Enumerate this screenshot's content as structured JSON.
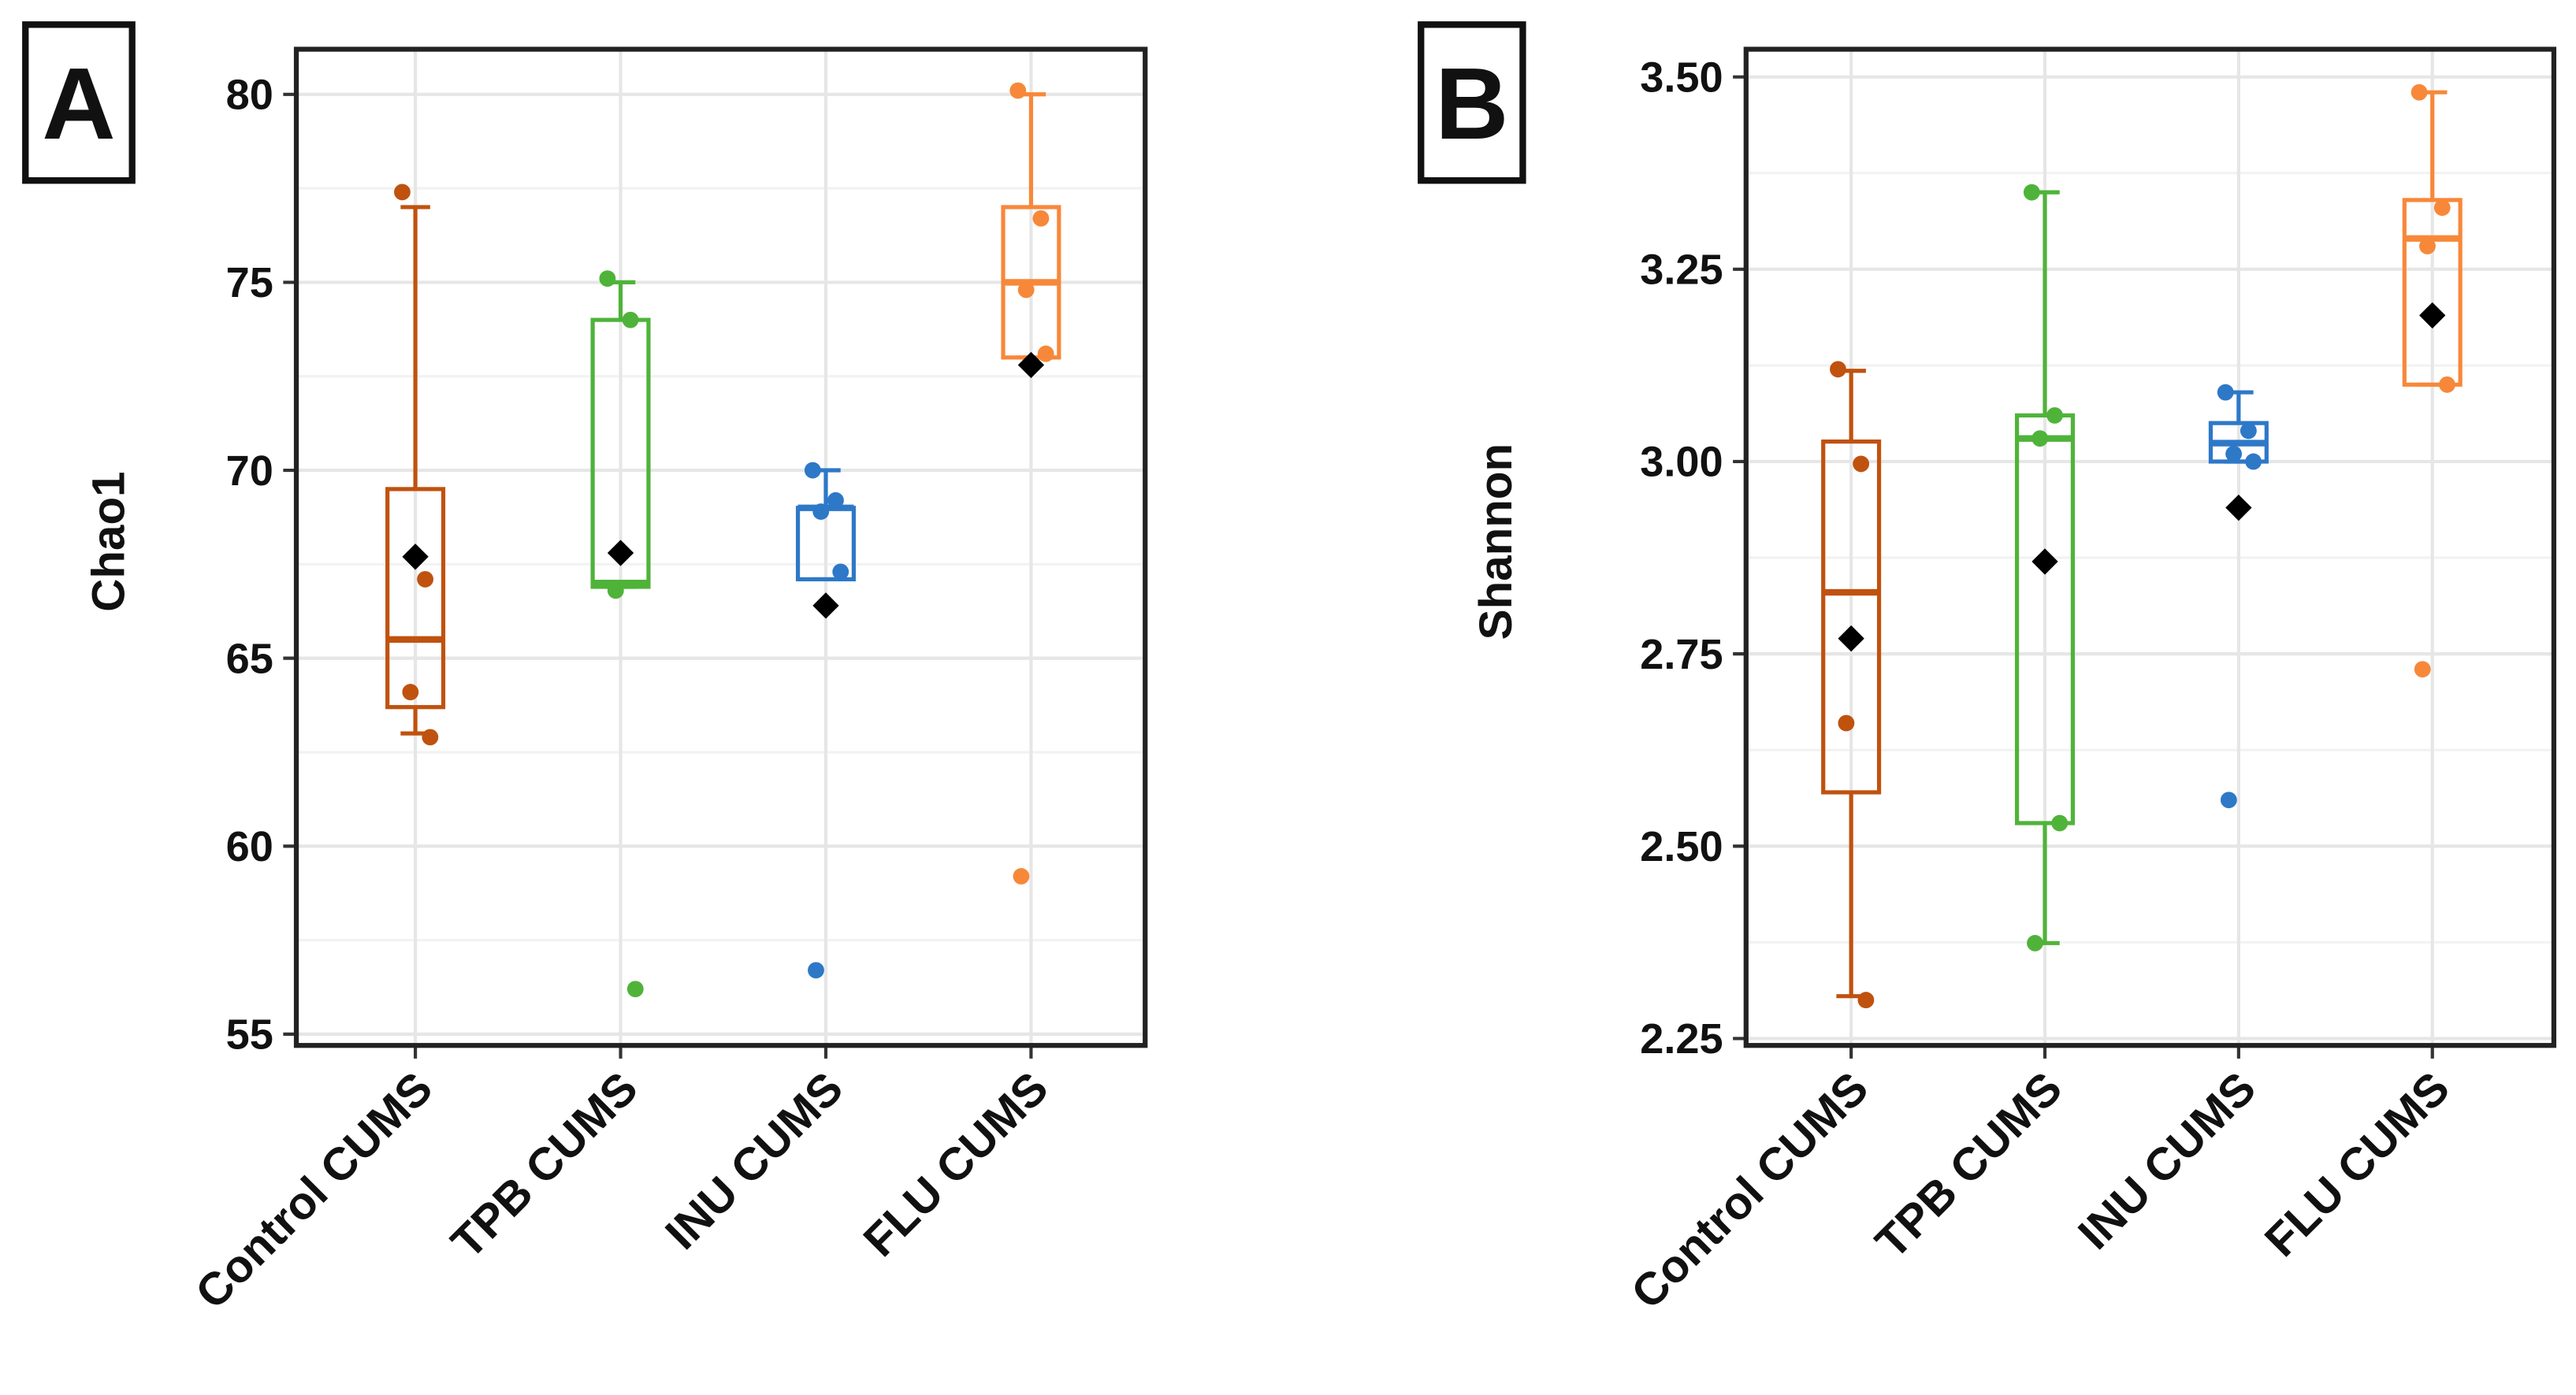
{
  "chart_data": [
    {
      "type": "box",
      "panel_label": "A",
      "y_label": "Chao1",
      "categories": [
        "Control CUMS",
        "TPB CUMS",
        "INU CUMS",
        "FLU CUMS"
      ],
      "boxes": [
        {
          "color": "#c0520f",
          "whisker_low": 63.0,
          "q1": 63.7,
          "median": 65.5,
          "q3": 69.5,
          "whisker_high": 77.0,
          "mean": 67.7,
          "points": [
            77.4,
            67.1,
            64.1,
            62.9
          ]
        },
        {
          "color": "#4fb33a",
          "whisker_low": 66.9,
          "q1": 66.9,
          "median": 67.0,
          "q3": 74.0,
          "whisker_high": 75.0,
          "mean": 67.8,
          "points": [
            75.1,
            74.0,
            66.8,
            56.2
          ]
        },
        {
          "color": "#2e78c8",
          "whisker_low": 67.1,
          "q1": 67.1,
          "median": 69.0,
          "q3": 69.0,
          "whisker_high": 70.0,
          "mean": 66.4,
          "points": [
            70.0,
            69.2,
            68.9,
            67.3,
            56.7
          ]
        },
        {
          "color": "#f7883a",
          "whisker_low": 73.0,
          "q1": 73.0,
          "median": 75.0,
          "q3": 77.0,
          "whisker_high": 80.0,
          "mean": 72.8,
          "points": [
            80.1,
            76.7,
            74.8,
            73.1,
            59.2
          ]
        }
      ],
      "mean_color": "#000000",
      "ylim": [
        54.7,
        81.2
      ],
      "yticks": [
        55,
        60,
        65,
        70,
        75,
        80
      ],
      "grid": true
    },
    {
      "type": "box",
      "panel_label": "B",
      "y_label": "Shannon",
      "categories": [
        "Control CUMS",
        "TPB CUMS",
        "INU CUMS",
        "FLU CUMS"
      ],
      "boxes": [
        {
          "color": "#c0520f",
          "whisker_low": 2.305,
          "q1": 2.57,
          "median": 2.83,
          "q3": 3.026,
          "whisker_high": 3.118,
          "mean": 2.77,
          "points": [
            3.12,
            2.997,
            2.66,
            2.3
          ]
        },
        {
          "color": "#4fb33a",
          "whisker_low": 2.374,
          "q1": 2.53,
          "median": 3.03,
          "q3": 3.06,
          "whisker_high": 3.35,
          "mean": 2.87,
          "points": [
            3.35,
            3.06,
            3.03,
            2.53,
            2.374
          ]
        },
        {
          "color": "#2e78c8",
          "whisker_low": 3.0,
          "q1": 3.0,
          "median": 3.024,
          "q3": 3.05,
          "whisker_high": 3.09,
          "mean": 2.94,
          "points": [
            3.09,
            3.04,
            3.01,
            3.0,
            2.56
          ]
        },
        {
          "color": "#f7883a",
          "whisker_low": 3.1,
          "q1": 3.1,
          "median": 3.29,
          "q3": 3.34,
          "whisker_high": 3.48,
          "mean": 3.19,
          "points": [
            3.48,
            3.33,
            3.28,
            3.1,
            2.73
          ]
        }
      ],
      "mean_color": "#000000",
      "ylim": [
        2.241,
        3.536
      ],
      "yticks": [
        2.25,
        {
          "value": 2.5,
          "label": "2.50"
        },
        2.75,
        {
          "value": 3,
          "label": "3.00"
        },
        3.25,
        {
          "value": 3.5,
          "label": "3.50"
        }
      ],
      "grid": true
    }
  ]
}
